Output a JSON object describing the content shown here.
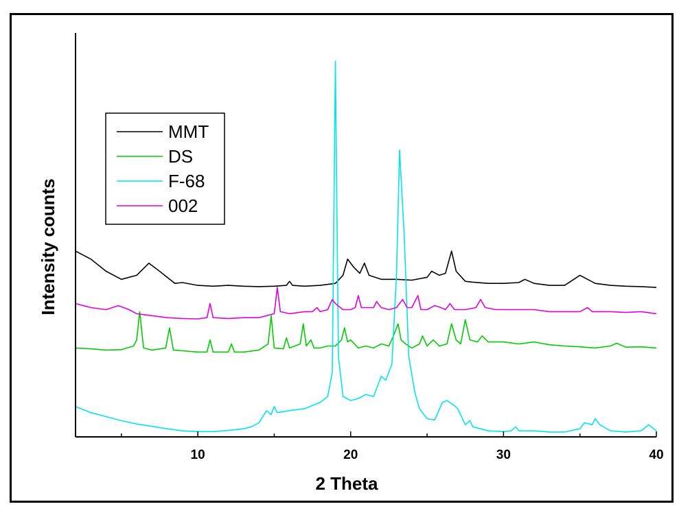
{
  "chart_data": {
    "type": "line",
    "title": "",
    "xlabel": "2 Theta",
    "ylabel": "Intensity counts",
    "xlim": [
      2,
      40
    ],
    "ylim": [
      0,
      100
    ],
    "x_ticks": [
      10,
      20,
      30,
      40
    ],
    "y_ticks_shown": false,
    "grid": false,
    "legend": {
      "position": "top-left",
      "boxed": true
    },
    "series": [
      {
        "name": "MMT",
        "color": "#000000",
        "points": [
          [
            2,
            46
          ],
          [
            3,
            44
          ],
          [
            4,
            41
          ],
          [
            5,
            39
          ],
          [
            6,
            40
          ],
          [
            6.8,
            43
          ],
          [
            7.5,
            41
          ],
          [
            8.5,
            38
          ],
          [
            9,
            38.2
          ],
          [
            10,
            37.5
          ],
          [
            11,
            37.3
          ],
          [
            12,
            37.5
          ],
          [
            13,
            37.3
          ],
          [
            14,
            37.2
          ],
          [
            15,
            37.3
          ],
          [
            15.8,
            37.5
          ],
          [
            16,
            38.5
          ],
          [
            16.2,
            37.5
          ],
          [
            17,
            37.3
          ],
          [
            18,
            37.5
          ],
          [
            19,
            38
          ],
          [
            19.5,
            40
          ],
          [
            19.8,
            44
          ],
          [
            20.2,
            42
          ],
          [
            20.6,
            40.5
          ],
          [
            20.9,
            43
          ],
          [
            21.2,
            40
          ],
          [
            22,
            39
          ],
          [
            23,
            39
          ],
          [
            24,
            38.8
          ],
          [
            25,
            39.5
          ],
          [
            25.3,
            41
          ],
          [
            25.8,
            40
          ],
          [
            26.2,
            40.5
          ],
          [
            26.6,
            46
          ],
          [
            26.9,
            41
          ],
          [
            27.5,
            38.5
          ],
          [
            28,
            38.3
          ],
          [
            29,
            38
          ],
          [
            30,
            38
          ],
          [
            31,
            38.2
          ],
          [
            31.4,
            39
          ],
          [
            32,
            38
          ],
          [
            33,
            37.5
          ],
          [
            34,
            37.5
          ],
          [
            34.6,
            39
          ],
          [
            35,
            40
          ],
          [
            35.5,
            39
          ],
          [
            36,
            38
          ],
          [
            37,
            37.5
          ],
          [
            38,
            37.3
          ],
          [
            39,
            37.2
          ],
          [
            40,
            37
          ]
        ]
      },
      {
        "name": "DS",
        "color": "#00cc00",
        "points": [
          [
            2,
            22
          ],
          [
            3,
            21.8
          ],
          [
            4,
            21.5
          ],
          [
            5,
            21.6
          ],
          [
            5.8,
            22.5
          ],
          [
            6,
            24
          ],
          [
            6.2,
            31
          ],
          [
            6.45,
            22
          ],
          [
            7,
            21.5
          ],
          [
            7.9,
            22
          ],
          [
            8.15,
            27
          ],
          [
            8.4,
            21.5
          ],
          [
            9,
            21.3
          ],
          [
            10,
            21
          ],
          [
            10.6,
            21
          ],
          [
            10.8,
            24
          ],
          [
            11,
            21
          ],
          [
            12,
            21
          ],
          [
            12.2,
            23
          ],
          [
            12.4,
            21
          ],
          [
            13,
            21
          ],
          [
            14,
            21.5
          ],
          [
            14.6,
            23
          ],
          [
            14.8,
            30
          ],
          [
            15,
            22
          ],
          [
            15.6,
            21.8
          ],
          [
            15.8,
            24.5
          ],
          [
            16,
            22
          ],
          [
            16.7,
            23
          ],
          [
            16.9,
            28
          ],
          [
            17.1,
            22.5
          ],
          [
            17.4,
            24
          ],
          [
            17.6,
            22
          ],
          [
            18,
            22
          ],
          [
            18.5,
            22.5
          ],
          [
            19,
            22.5
          ],
          [
            19.4,
            24
          ],
          [
            19.6,
            27
          ],
          [
            19.8,
            23.5
          ],
          [
            20,
            24
          ],
          [
            20.5,
            22
          ],
          [
            21,
            22.5
          ],
          [
            21.5,
            22
          ],
          [
            22,
            23
          ],
          [
            22.5,
            22.5
          ],
          [
            22.8,
            25
          ],
          [
            23.1,
            28
          ],
          [
            23.3,
            24
          ],
          [
            23.6,
            23
          ],
          [
            24,
            22
          ],
          [
            24.5,
            23
          ],
          [
            24.7,
            25
          ],
          [
            25,
            22.5
          ],
          [
            25.4,
            24
          ],
          [
            25.8,
            22.5
          ],
          [
            26.3,
            23
          ],
          [
            26.6,
            28
          ],
          [
            26.9,
            24
          ],
          [
            27.2,
            23
          ],
          [
            27.5,
            29
          ],
          [
            27.8,
            24
          ],
          [
            28.3,
            23.5
          ],
          [
            28.6,
            25
          ],
          [
            29,
            23.5
          ],
          [
            30,
            23.5
          ],
          [
            31,
            23
          ],
          [
            32,
            23.5
          ],
          [
            33,
            22.8
          ],
          [
            34,
            22.5
          ],
          [
            35,
            22.3
          ],
          [
            36,
            22
          ],
          [
            37,
            22.5
          ],
          [
            37.4,
            23.2
          ],
          [
            38,
            22.2
          ],
          [
            39,
            22.3
          ],
          [
            40,
            22
          ]
        ]
      },
      {
        "name": "F-68",
        "color": "#00e5ee",
        "points": [
          [
            2,
            7.5
          ],
          [
            3,
            6
          ],
          [
            4,
            5
          ],
          [
            5,
            4
          ],
          [
            6,
            3.2
          ],
          [
            7,
            2.6
          ],
          [
            8,
            2
          ],
          [
            9,
            1.5
          ],
          [
            10,
            1.3
          ],
          [
            11,
            1.3
          ],
          [
            12,
            1.6
          ],
          [
            13,
            2
          ],
          [
            13.5,
            2.5
          ],
          [
            14,
            3.5
          ],
          [
            14.5,
            6.5
          ],
          [
            14.8,
            5.5
          ],
          [
            15,
            7.5
          ],
          [
            15.2,
            6
          ],
          [
            16,
            6.5
          ],
          [
            17,
            7
          ],
          [
            18,
            8.5
          ],
          [
            18.5,
            10
          ],
          [
            18.8,
            16
          ],
          [
            19,
            93
          ],
          [
            19.2,
            20
          ],
          [
            19.5,
            10
          ],
          [
            20,
            9
          ],
          [
            20.5,
            9.5
          ],
          [
            21,
            10.5
          ],
          [
            21.5,
            10
          ],
          [
            22,
            15
          ],
          [
            22.3,
            14
          ],
          [
            22.7,
            18
          ],
          [
            23,
            40
          ],
          [
            23.2,
            71
          ],
          [
            23.5,
            50
          ],
          [
            23.8,
            20
          ],
          [
            24.2,
            11
          ],
          [
            24.5,
            7
          ],
          [
            25,
            4.5
          ],
          [
            25.5,
            4.2
          ],
          [
            26,
            8.5
          ],
          [
            26.3,
            9
          ],
          [
            26.7,
            8
          ],
          [
            27,
            7
          ],
          [
            27.5,
            3
          ],
          [
            27.8,
            4
          ],
          [
            28,
            2.5
          ],
          [
            29,
            1.5
          ],
          [
            30,
            1.3
          ],
          [
            30.5,
            1.5
          ],
          [
            30.8,
            2.5
          ],
          [
            31,
            1.5
          ],
          [
            32,
            1.5
          ],
          [
            33,
            1.2
          ],
          [
            34,
            1.2
          ],
          [
            35,
            2
          ],
          [
            35.3,
            3.5
          ],
          [
            35.8,
            3
          ],
          [
            36,
            4.5
          ],
          [
            36.3,
            3
          ],
          [
            37,
            1.5
          ],
          [
            38,
            1.2
          ],
          [
            39,
            1.5
          ],
          [
            39.5,
            3
          ],
          [
            40,
            1.5
          ]
        ]
      },
      {
        "name": "002",
        "color": "#e000e0",
        "points": [
          [
            2,
            33
          ],
          [
            3,
            32
          ],
          [
            4,
            31.5
          ],
          [
            4.8,
            32.5
          ],
          [
            5.5,
            31.5
          ],
          [
            6,
            30.5
          ],
          [
            7,
            30
          ],
          [
            8,
            29.5
          ],
          [
            9,
            29.3
          ],
          [
            10,
            29.2
          ],
          [
            10.6,
            29.5
          ],
          [
            10.8,
            33
          ],
          [
            11,
            29.5
          ],
          [
            12,
            29.3
          ],
          [
            13,
            29.5
          ],
          [
            14,
            29.5
          ],
          [
            14.5,
            30
          ],
          [
            15,
            30.5
          ],
          [
            15.2,
            37
          ],
          [
            15.4,
            31
          ],
          [
            16,
            30.5
          ],
          [
            17,
            31
          ],
          [
            17.5,
            31
          ],
          [
            17.8,
            32
          ],
          [
            18,
            31
          ],
          [
            18.5,
            31.5
          ],
          [
            18.8,
            34
          ],
          [
            19,
            33
          ],
          [
            19.5,
            31.5
          ],
          [
            20,
            31.5
          ],
          [
            20.3,
            32
          ],
          [
            20.5,
            35
          ],
          [
            20.7,
            32
          ],
          [
            21,
            32
          ],
          [
            21.5,
            32
          ],
          [
            21.7,
            33.5
          ],
          [
            22,
            32
          ],
          [
            22.5,
            31.5
          ],
          [
            23,
            32
          ],
          [
            23.4,
            34
          ],
          [
            23.7,
            32
          ],
          [
            24,
            32
          ],
          [
            24.4,
            35
          ],
          [
            24.6,
            31.5
          ],
          [
            25,
            31.5
          ],
          [
            25.5,
            32.5
          ],
          [
            25.9,
            32
          ],
          [
            26.2,
            31.5
          ],
          [
            26.5,
            33
          ],
          [
            26.8,
            31.5
          ],
          [
            27.5,
            31.5
          ],
          [
            28.2,
            32
          ],
          [
            28.5,
            34
          ],
          [
            28.8,
            32
          ],
          [
            29.5,
            31.5
          ],
          [
            30,
            31.5
          ],
          [
            31,
            31.5
          ],
          [
            32,
            31.5
          ],
          [
            33,
            31
          ],
          [
            34,
            31
          ],
          [
            35,
            31
          ],
          [
            35.5,
            32
          ],
          [
            35.8,
            31
          ],
          [
            36,
            31
          ],
          [
            37,
            31
          ],
          [
            38,
            30.8
          ],
          [
            39,
            31
          ],
          [
            40,
            30.5
          ]
        ]
      }
    ]
  }
}
